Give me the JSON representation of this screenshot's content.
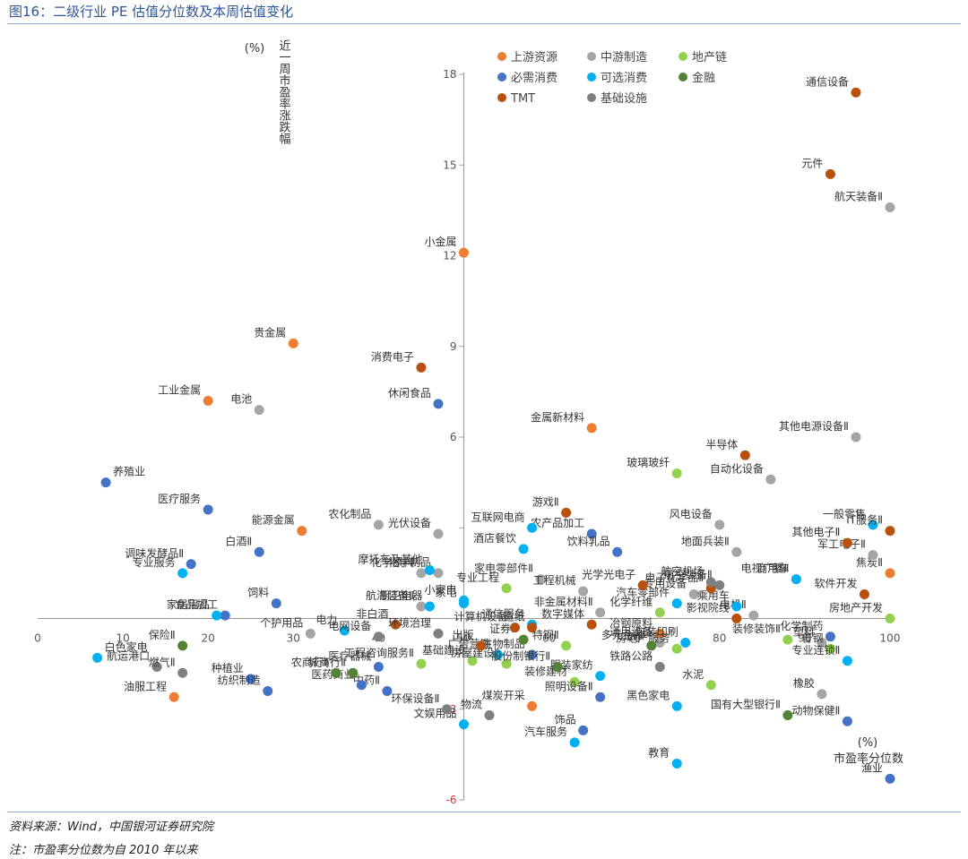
{
  "figure": {
    "title": "图16：二级行业 PE 估值分位数及本周估值变化",
    "source": "资料来源：Wind，中国银河证券研究院",
    "note": "注：市盈率分位数为自 2010 年以来"
  },
  "chart_data": {
    "type": "scatter",
    "ylabel": "近一周市盈率涨跌幅",
    "yunit": "(%)",
    "xlabel": "市盈率分位数",
    "xunit": "(%)",
    "xlim": [
      0,
      100
    ],
    "ylim": [
      -6,
      18
    ],
    "xticks": [
      0,
      10,
      20,
      30,
      40,
      50,
      60,
      70,
      80,
      90,
      100
    ],
    "yticks": [
      -6,
      -3,
      3,
      6,
      9,
      12,
      15,
      18
    ],
    "yticks_labeled": [
      -6,
      -3,
      6,
      9,
      12,
      15,
      18
    ],
    "grid": false,
    "legend_position": "top",
    "colors": {
      "上游资源": "#ed7d31",
      "中游制造": "#a5a5a5",
      "地产链": "#92d050",
      "必需消费": "#4472c4",
      "可选消费": "#00b0f0",
      "金融": "#548235",
      "TMT": "#b8500e",
      "基础设施": "#7f7f7f"
    },
    "series": [
      {
        "name": "上游资源",
        "points": [
          {
            "label": "小金属",
            "x": 50,
            "y": 12.1
          },
          {
            "label": "贵金属",
            "x": 30,
            "y": 9.1
          },
          {
            "label": "工业金属",
            "x": 20,
            "y": 7.2
          },
          {
            "label": "能源金属",
            "x": 31,
            "y": 2.9
          },
          {
            "label": "金属新材料",
            "x": 65,
            "y": 6.3
          },
          {
            "label": "焦炭Ⅱ",
            "x": 100,
            "y": 1.5
          },
          {
            "label": "冶钢原料",
            "x": 73,
            "y": -0.5
          },
          {
            "label": "油服工程",
            "x": 16,
            "y": -2.6
          },
          {
            "label": "煤炭开采",
            "x": 58,
            "y": -2.9
          }
        ]
      },
      {
        "name": "中游制造",
        "points": [
          {
            "label": "电池",
            "x": 26,
            "y": 6.9
          },
          {
            "label": "农化制品",
            "x": 40,
            "y": 3.1
          },
          {
            "label": "光伏设备",
            "x": 47,
            "y": 2.8
          },
          {
            "label": "化学原料",
            "x": 45,
            "y": 1.5
          },
          {
            "label": "化学制品",
            "x": 47,
            "y": 1.5
          },
          {
            "label": "个护用品",
            "x": 32,
            "y": -0.5
          },
          {
            "label": "家电零部件Ⅱ",
            "x": 59,
            "y": 1.3
          },
          {
            "label": "工程机械",
            "x": 64,
            "y": 0.9
          },
          {
            "label": "非金属材料Ⅱ",
            "x": 66,
            "y": 0.2
          },
          {
            "label": "专用设备",
            "x": 77,
            "y": 0.8
          },
          {
            "label": "风电设备",
            "x": 80,
            "y": 3.1
          },
          {
            "label": "地面兵装Ⅱ",
            "x": 82,
            "y": 2.2
          },
          {
            "label": "自动化设备",
            "x": 86,
            "y": 4.6
          },
          {
            "label": "其他电源设备Ⅱ",
            "x": 96,
            "y": 6.0
          },
          {
            "label": "军工电子Ⅱ",
            "x": 98,
            "y": 2.1
          },
          {
            "label": "航天装备Ⅱ",
            "x": 100,
            "y": 13.6
          },
          {
            "label": "电机Ⅱ",
            "x": 84,
            "y": 0.1
          },
          {
            "label": "通用设备",
            "x": 73,
            "y": -0.8
          },
          {
            "label": "塑料",
            "x": 92,
            "y": -0.8
          },
          {
            "label": "橡胶",
            "x": 92,
            "y": -2.5
          },
          {
            "label": "航海装备Ⅱ",
            "x": 45,
            "y": 0.4
          }
        ]
      },
      {
        "name": "地产链",
        "points": [
          {
            "label": "玻璃玻纤",
            "x": 75,
            "y": 4.8
          },
          {
            "label": "专业工程",
            "x": 55,
            "y": 1.0
          },
          {
            "label": "化学纤维",
            "x": 73,
            "y": 0.2
          },
          {
            "label": "特钢Ⅱ",
            "x": 62,
            "y": -0.9
          },
          {
            "label": "装修装饰Ⅱ",
            "x": 88,
            "y": -0.7
          },
          {
            "label": "普钢",
            "x": 93,
            "y": -1.0
          },
          {
            "label": "房地产开发",
            "x": 100,
            "y": 0.0
          },
          {
            "label": "房地产服务",
            "x": 75,
            "y": -1.0
          },
          {
            "label": "基础建设",
            "x": 51,
            "y": -1.4
          },
          {
            "label": "工程咨询服务Ⅱ",
            "x": 45,
            "y": -1.5
          },
          {
            "label": "房屋建设Ⅱ",
            "x": 55,
            "y": -1.5
          },
          {
            "label": "装修建材",
            "x": 63,
            "y": -2.1
          },
          {
            "label": "水泥",
            "x": 79,
            "y": -2.2
          }
        ]
      },
      {
        "name": "必需消费",
        "points": [
          {
            "label": "休闲食品",
            "x": 47,
            "y": 7.1
          },
          {
            "label": "养殖业",
            "x": 8,
            "y": 4.5
          },
          {
            "label": "医疗服务",
            "x": 20,
            "y": 3.6
          },
          {
            "label": "白酒Ⅱ",
            "x": 26,
            "y": 2.2
          },
          {
            "label": "调味发酵品Ⅱ",
            "x": 18,
            "y": 1.8
          },
          {
            "label": "食品加工",
            "x": 22,
            "y": 0.1
          },
          {
            "label": "饲料",
            "x": 28,
            "y": 0.5
          },
          {
            "label": "农产品加工",
            "x": 65,
            "y": 2.8
          },
          {
            "label": "饮料乳品",
            "x": 68,
            "y": 2.2
          },
          {
            "label": "化学制药",
            "x": 93,
            "y": -0.6
          },
          {
            "label": "动物保健Ⅱ",
            "x": 95,
            "y": -3.4
          },
          {
            "label": "渔业",
            "x": 100,
            "y": -5.3
          },
          {
            "label": "医疗器械",
            "x": 40,
            "y": -1.6
          },
          {
            "label": "种植业",
            "x": 25,
            "y": -2.0
          },
          {
            "label": "纺织制造",
            "x": 27,
            "y": -2.4
          },
          {
            "label": "中药Ⅱ",
            "x": 41,
            "y": -2.4
          },
          {
            "label": "医药商业",
            "x": 38,
            "y": -2.2
          },
          {
            "label": "生物制品",
            "x": 58,
            "y": -1.2
          },
          {
            "label": "照明设备Ⅱ",
            "x": 66,
            "y": -2.6
          },
          {
            "label": "饰品",
            "x": 64,
            "y": -3.7
          }
        ]
      },
      {
        "name": "可选消费",
        "points": [
          {
            "label": "一般零售",
            "x": 98,
            "y": 3.1
          },
          {
            "label": "互联网电商",
            "x": 58,
            "y": 3.0
          },
          {
            "label": "酒店餐饮",
            "x": 57,
            "y": 2.3
          },
          {
            "label": "摩托车及其他",
            "x": 46,
            "y": 1.6
          },
          {
            "label": "专业服务",
            "x": 17,
            "y": 1.5
          },
          {
            "label": "家居用品",
            "x": 21,
            "y": 0.1
          },
          {
            "label": "厨卫电器",
            "x": 46,
            "y": 0.4
          },
          {
            "label": "小家电",
            "x": 50,
            "y": 0.6
          },
          {
            "label": "电视广播Ⅱ",
            "x": 89,
            "y": 1.3
          },
          {
            "label": "汽车零部件",
            "x": 75,
            "y": 0.5
          },
          {
            "label": "乘用车",
            "x": 82,
            "y": 0.4
          },
          {
            "label": "商用车",
            "x": 89,
            "y": 1.3
          },
          {
            "label": "家电",
            "x": 50,
            "y": 0.5
          },
          {
            "label": "电力",
            "x": 36,
            "y": -0.4
          },
          {
            "label": "包装印刷",
            "x": 76,
            "y": -0.8
          },
          {
            "label": "通信服务",
            "x": 58,
            "y": -0.2
          },
          {
            "label": "专业连锁Ⅱ",
            "x": 95,
            "y": -1.4
          },
          {
            "label": "白色家电",
            "x": 7,
            "y": -1.3
          },
          {
            "label": "文娱用品",
            "x": 50,
            "y": -3.5
          },
          {
            "label": "黑色家电",
            "x": 75,
            "y": -2.9
          },
          {
            "label": "汽车服务",
            "x": 63,
            "y": -4.1
          },
          {
            "label": "教育",
            "x": 75,
            "y": -4.8
          },
          {
            "label": "广告营销",
            "x": 54,
            "y": -1.2
          },
          {
            "label": "服装家纺",
            "x": 66,
            "y": -1.9
          }
        ]
      },
      {
        "name": "金融",
        "points": [
          {
            "label": "保险Ⅱ",
            "x": 17,
            "y": -0.9
          },
          {
            "label": "证券Ⅱ",
            "x": 57,
            "y": -0.7
          },
          {
            "label": "多元金融",
            "x": 72,
            "y": -0.9
          },
          {
            "label": "股份制银行Ⅱ",
            "x": 61,
            "y": -1.6
          },
          {
            "label": "城商行Ⅱ",
            "x": 37,
            "y": -1.8
          },
          {
            "label": "农商行Ⅱ",
            "x": 35,
            "y": -1.8
          },
          {
            "label": "国有大型银行Ⅱ",
            "x": 88,
            "y": -3.2
          }
        ]
      },
      {
        "name": "TMT",
        "points": [
          {
            "label": "通信设备",
            "x": 96,
            "y": 17.4
          },
          {
            "label": "元件",
            "x": 93,
            "y": 14.7
          },
          {
            "label": "消费电子",
            "x": 45,
            "y": 8.3
          },
          {
            "label": "半导体",
            "x": 83,
            "y": 5.4
          },
          {
            "label": "游戏Ⅱ",
            "x": 62,
            "y": 3.5
          },
          {
            "label": "其他电子Ⅱ",
            "x": 95,
            "y": 2.5
          },
          {
            "label": "IT服务Ⅱ",
            "x": 100,
            "y": 2.9
          },
          {
            "label": "光学光电子",
            "x": 71,
            "y": 1.1
          },
          {
            "label": "电子化学品Ⅱ",
            "x": 79,
            "y": 1.0
          },
          {
            "label": "软件开发",
            "x": 97,
            "y": 0.8
          },
          {
            "label": "影视院线",
            "x": 82,
            "y": 0.0
          },
          {
            "label": "计算机设备",
            "x": 56,
            "y": -0.3
          },
          {
            "label": "出版",
            "x": 52,
            "y": -0.9
          },
          {
            "label": "数字媒体",
            "x": 65,
            "y": -0.2
          },
          {
            "label": "造纸",
            "x": 58,
            "y": -0.3
          },
          {
            "label": "非白酒",
            "x": 42,
            "y": -0.2
          }
        ]
      },
      {
        "name": "基础设施",
        "points": [
          {
            "label": "航空装备Ⅱ",
            "x": 80,
            "y": 1.1
          },
          {
            "label": "航空机场",
            "x": 79,
            "y": 1.2
          },
          {
            "label": "航运港口",
            "x": 14,
            "y": -1.6
          },
          {
            "label": "燃气Ⅱ",
            "x": 17,
            "y": -1.8
          },
          {
            "label": "环境治理",
            "x": 47,
            "y": -0.5
          },
          {
            "label": "环保设备Ⅱ",
            "x": 48,
            "y": -3.0
          },
          {
            "label": "物流",
            "x": 53,
            "y": -3.2
          },
          {
            "label": "铁路公路",
            "x": 73,
            "y": -1.6
          },
          {
            "label": "电网设备",
            "x": 40,
            "y": -0.6
          }
        ]
      }
    ]
  }
}
